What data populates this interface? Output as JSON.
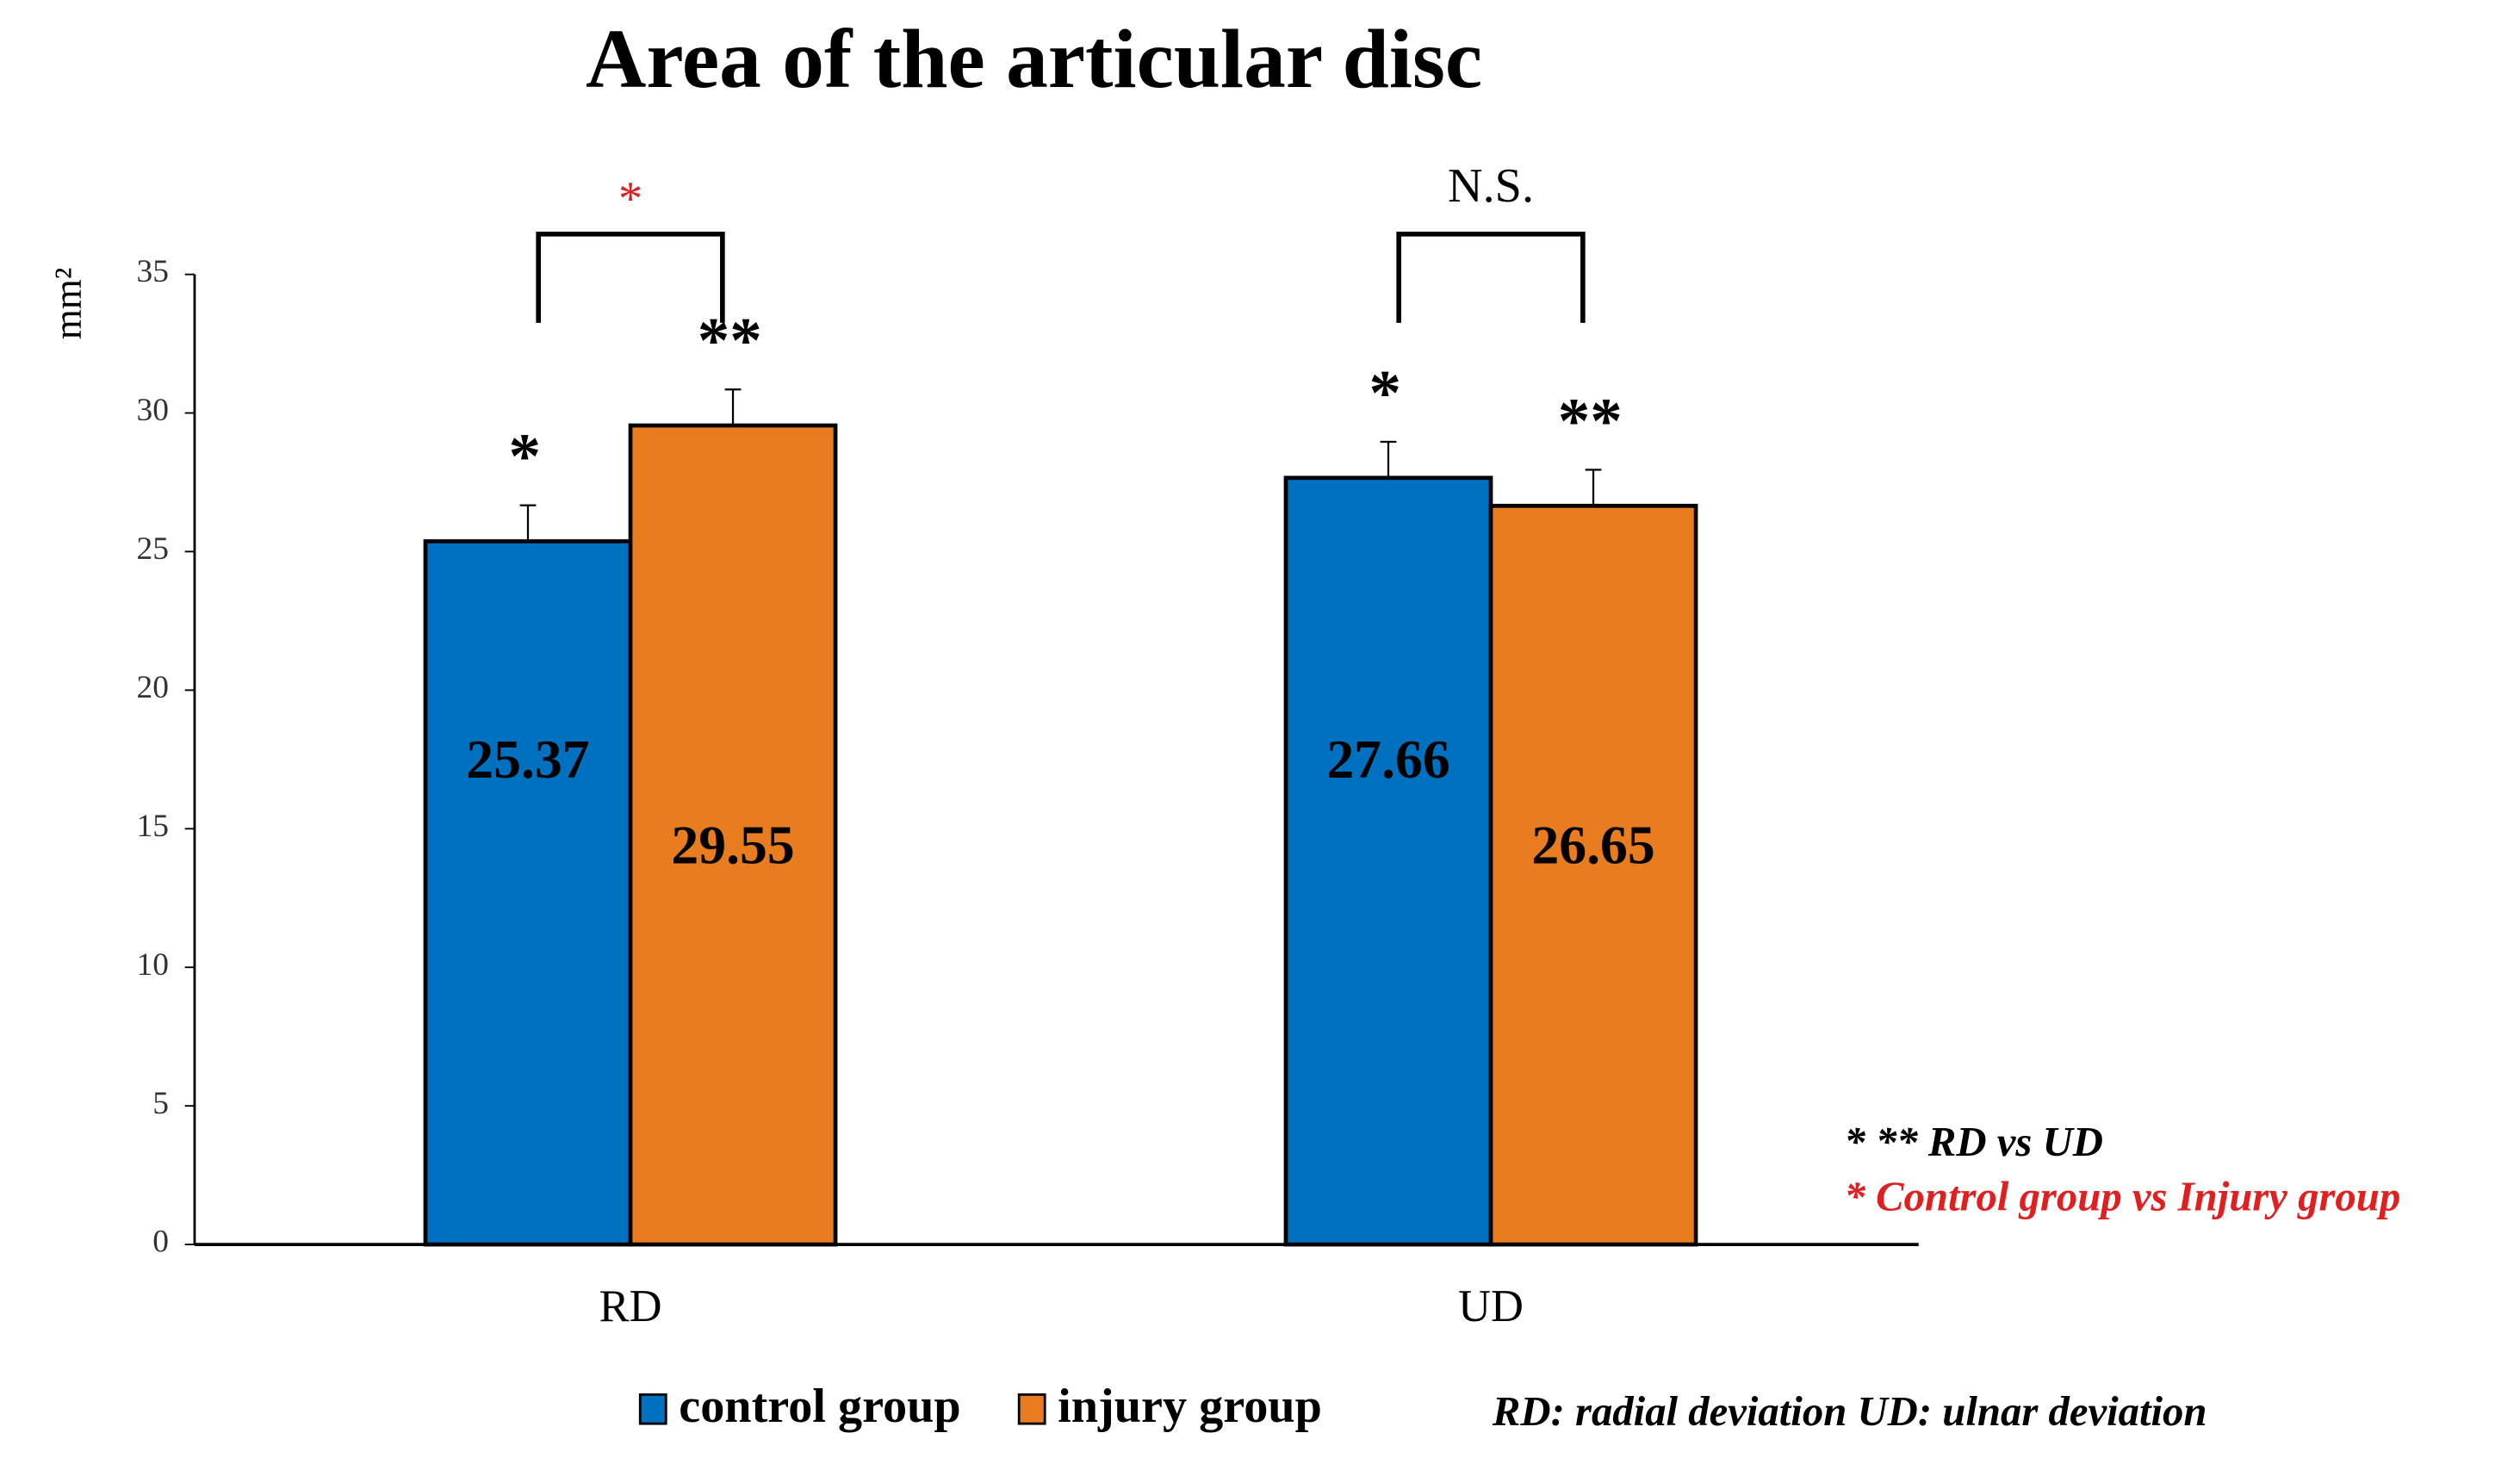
{
  "chart_data": {
    "type": "bar",
    "title": "Area of the articular disc",
    "y_label": "mm²",
    "categories": [
      "RD",
      "UD"
    ],
    "series": [
      {
        "name": "control group",
        "color": "#0070c0",
        "values": [
          25.37,
          27.66
        ],
        "errors": [
          1.3,
          1.3
        ],
        "markers": [
          "*",
          "*"
        ]
      },
      {
        "name": "injury group",
        "color": "#e87c1e",
        "values": [
          29.55,
          26.65
        ],
        "errors": [
          1.3,
          1.3
        ],
        "markers": [
          "**",
          "**"
        ]
      }
    ],
    "comparisons": [
      {
        "label": "*",
        "color": "#e02020"
      },
      {
        "label": "N.S.",
        "color": "#000000"
      }
    ],
    "ylim": [
      0,
      35
    ],
    "yticks": [
      0,
      5,
      10,
      15,
      20,
      25,
      30,
      35
    ],
    "grid": false,
    "notes": [
      {
        "text": "* ** RD vs UD",
        "color": "#000000"
      },
      {
        "text": "* Control group vs Injury group",
        "color": "#e02020"
      }
    ],
    "footnote": "RD: radial deviation UD: ulnar deviation"
  }
}
